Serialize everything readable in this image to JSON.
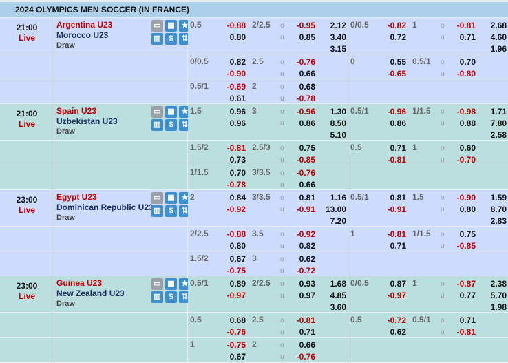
{
  "league": {
    "title": "2024 OLYMPICS MEN SOCCER (IN FRANCE)"
  },
  "labels": {
    "over": "o",
    "under": "u"
  },
  "colors": {
    "header": "#acd0ea",
    "row_blue": "#cddcfd",
    "row_teal": "#bbdfdf",
    "negative": "#c00000",
    "home_team": "#c00000",
    "away_team": "#1a2f5e"
  },
  "icons": [
    "tv-icon",
    "field-icon",
    "star-icon",
    "stats-icon",
    "dollar-icon",
    "odds-change-icon"
  ],
  "matches": [
    {
      "time": "21:00",
      "status": "Live",
      "home": "Argentina U23",
      "away": "Morocco U23",
      "draw": "Draw",
      "rows": [
        {
          "ft": {
            "hdp": "0.5",
            "h": "-0.88",
            "a": "0.80",
            "ou": "2/2.5",
            "o": "-0.95",
            "u": "0.85",
            "x1": "2.12",
            "x2": "3.40",
            "xd": "3.15"
          },
          "ht": {
            "hdp": "0/0.5",
            "h": "-0.82",
            "a": "0.72",
            "ou": "1",
            "o": "-0.81",
            "u": "0.71",
            "x1": "2.68",
            "x2": "4.60",
            "xd": "1.96"
          }
        },
        {
          "ft": {
            "hdp": "0/0.5",
            "h": "0.82",
            "a": "-0.90",
            "ou": "2.5",
            "o": "-0.76",
            "u": "0.66"
          },
          "ht": {
            "hdp": "0",
            "h": "0.55",
            "a": "-0.65",
            "ou": "0.5/1",
            "o": "0.70",
            "u": "-0.80"
          }
        },
        {
          "ft": {
            "hdp": "0.5/1",
            "h": "-0.69",
            "a": "0.61",
            "ou": "2",
            "o": "0.68",
            "u": "-0.78"
          },
          "ht": {}
        }
      ]
    },
    {
      "time": "21:00",
      "status": "Live",
      "home": "Spain U23",
      "away": "Uzbekistan U23",
      "draw": "Draw",
      "rows": [
        {
          "ft": {
            "hdp": "1.5",
            "h": "0.96",
            "a": "0.96",
            "ou": "3",
            "o": "-0.96",
            "u": "0.86",
            "x1": "1.30",
            "x2": "8.50",
            "xd": "5.10"
          },
          "ht": {
            "hdp": "0.5/1",
            "h": "-0.96",
            "a": "0.86",
            "ou": "1/1.5",
            "o": "-0.98",
            "u": "0.88",
            "x1": "1.71",
            "x2": "7.80",
            "xd": "2.58"
          }
        },
        {
          "ft": {
            "hdp": "1.5/2",
            "h": "-0.81",
            "a": "0.73",
            "ou": "2.5/3",
            "o": "0.75",
            "u": "-0.85"
          },
          "ht": {
            "hdp": "0.5",
            "h": "0.71",
            "a": "-0.81",
            "ou": "1",
            "o": "0.60",
            "u": "-0.70"
          }
        },
        {
          "ft": {
            "hdp": "1/1.5",
            "h": "0.70",
            "a": "-0.78",
            "ou": "3/3.5",
            "o": "-0.76",
            "u": "0.66"
          },
          "ht": {}
        }
      ]
    },
    {
      "time": "23:00",
      "status": "Live",
      "home": "Egypt U23",
      "away": "Dominican Republic U23",
      "draw": "Draw",
      "rows": [
        {
          "ft": {
            "hdp": "2",
            "h": "0.84",
            "a": "-0.92",
            "ou": "3/3.5",
            "o": "0.81",
            "u": "-0.91",
            "x1": "1.16",
            "x2": "13.00",
            "xd": "7.20"
          },
          "ht": {
            "hdp": "0.5/1",
            "h": "0.81",
            "a": "-0.91",
            "ou": "1.5",
            "o": "-0.90",
            "u": "0.80",
            "x1": "1.59",
            "x2": "8.70",
            "xd": "2.83"
          }
        },
        {
          "ft": {
            "hdp": "2/2.5",
            "h": "-0.88",
            "a": "0.80",
            "ou": "3.5",
            "o": "-0.92",
            "u": "0.82"
          },
          "ht": {
            "hdp": "1",
            "h": "-0.81",
            "a": "0.71",
            "ou": "1/1.5",
            "o": "0.75",
            "u": "-0.85"
          }
        },
        {
          "ft": {
            "hdp": "1.5/2",
            "h": "0.67",
            "a": "-0.75",
            "ou": "3",
            "o": "0.62",
            "u": "-0.72"
          },
          "ht": {}
        }
      ]
    },
    {
      "time": "23:00",
      "status": "Live",
      "home": "Guinea U23",
      "away": "New Zealand U23",
      "draw": "Draw",
      "rows": [
        {
          "ft": {
            "hdp": "0.5/1",
            "h": "0.89",
            "a": "-0.97",
            "ou": "2/2.5",
            "o": "0.93",
            "u": "0.97",
            "x1": "1.68",
            "x2": "4.85",
            "xd": "3.60"
          },
          "ht": {
            "hdp": "0/0.5",
            "h": "0.87",
            "a": "-0.97",
            "ou": "1",
            "o": "-0.87",
            "u": "0.77",
            "x1": "2.38",
            "x2": "5.70",
            "xd": "1.98"
          }
        },
        {
          "ft": {
            "hdp": "0.5",
            "h": "0.68",
            "a": "-0.76",
            "ou": "2.5",
            "o": "-0.81",
            "u": "0.71"
          },
          "ht": {
            "hdp": "0.5",
            "h": "-0.72",
            "a": "0.62",
            "ou": "0.5/1",
            "o": "0.71",
            "u": "-0.81"
          }
        },
        {
          "ft": {
            "hdp": "1",
            "h": "-0.75",
            "a": "0.67",
            "ou": "2",
            "o": "0.66",
            "u": "-0.76"
          },
          "ht": {}
        }
      ]
    }
  ]
}
